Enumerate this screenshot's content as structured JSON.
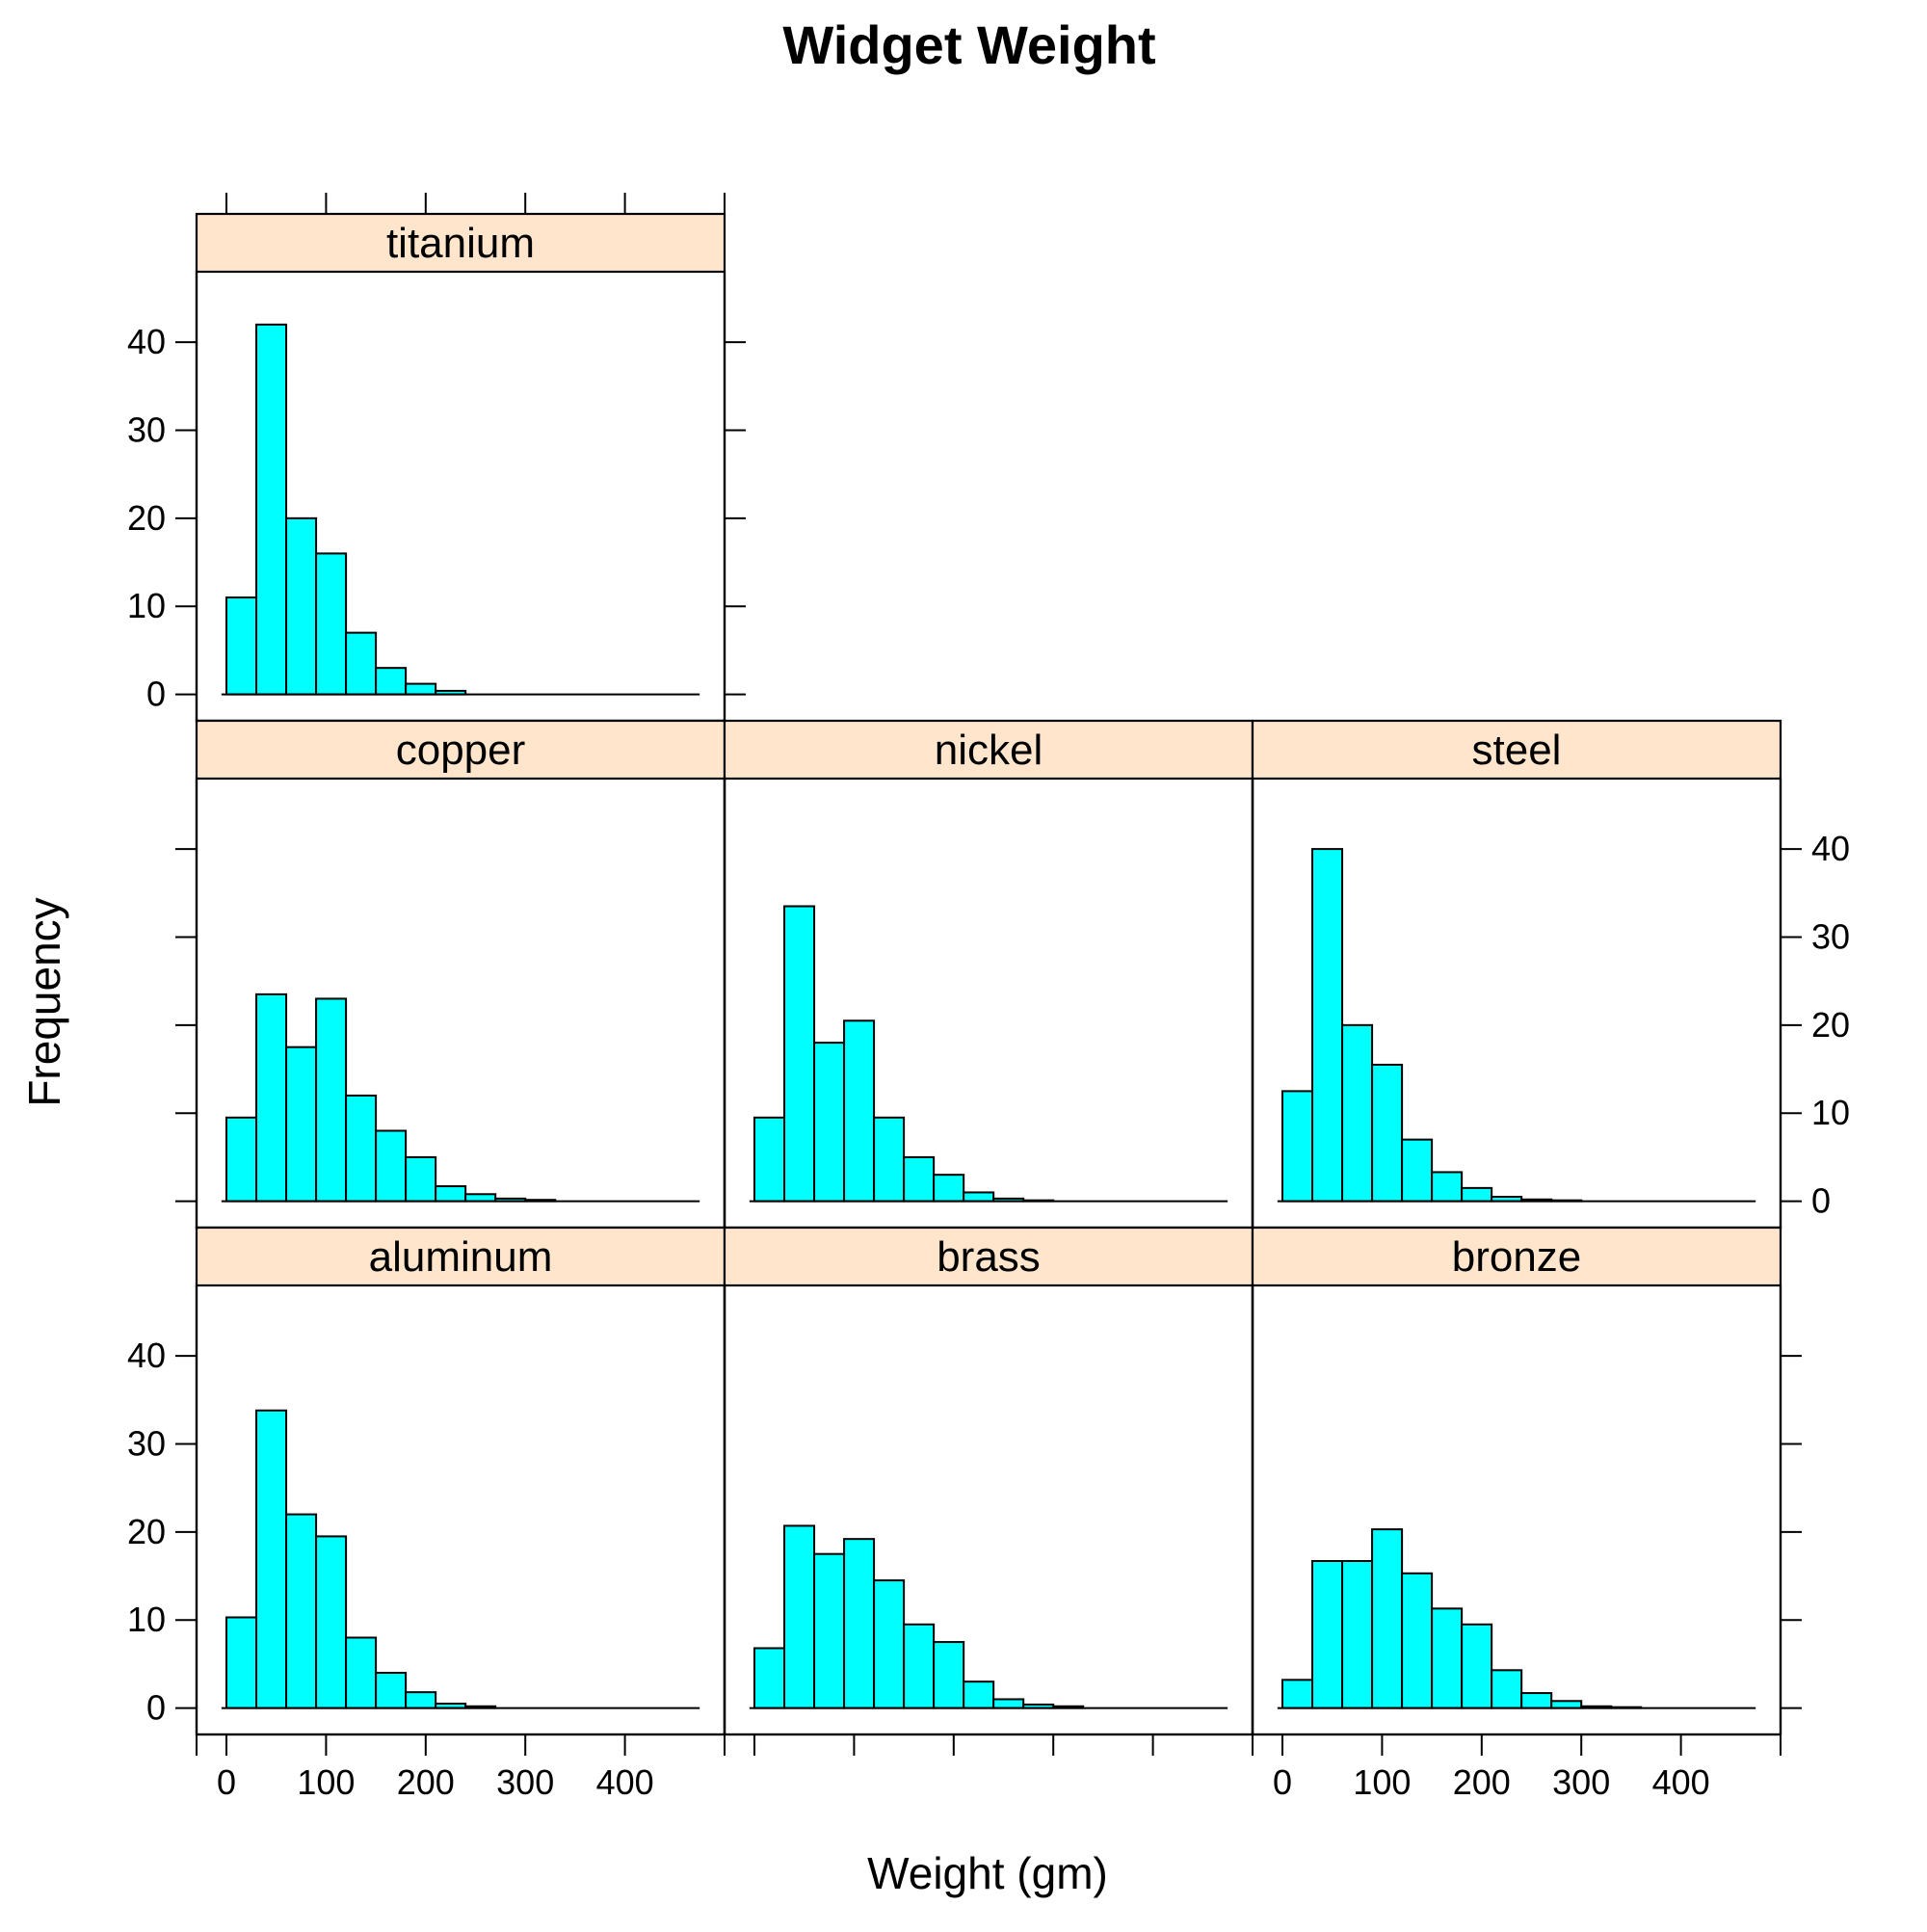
{
  "chart_data": {
    "type": "bar",
    "title": "Widget Weight",
    "xlabel": "Weight (gm)",
    "ylabel": "Frequency",
    "xlim": [
      -30,
      500
    ],
    "ylim": [
      -3,
      48
    ],
    "x_ticks": [
      0,
      100,
      200,
      300,
      400
    ],
    "y_ticks": [
      0,
      10,
      20,
      30,
      40
    ],
    "bar_color": "#00ffff",
    "strip_color": "#ffe5cc",
    "bin_width": 30,
    "bin_start": 0,
    "baseline_range": [
      -5,
      475
    ],
    "panels": [
      {
        "name": "titanium",
        "values": [
          11,
          42,
          20,
          16,
          7,
          3,
          1.2,
          0.4,
          0,
          0,
          0,
          0,
          0,
          0,
          0,
          0
        ]
      },
      {
        "name": "copper",
        "values": [
          9.5,
          23.5,
          17.5,
          23,
          12,
          8,
          5,
          1.7,
          0.8,
          0.3,
          0.15,
          0,
          0,
          0,
          0,
          0
        ]
      },
      {
        "name": "nickel",
        "values": [
          9.5,
          33.5,
          18,
          20.5,
          9.5,
          5,
          3,
          1,
          0.3,
          0.1,
          0,
          0,
          0,
          0,
          0,
          0
        ]
      },
      {
        "name": "steel",
        "values": [
          12.5,
          40,
          20,
          15.5,
          7,
          3.3,
          1.5,
          0.5,
          0.2,
          0.1,
          0,
          0,
          0,
          0,
          0,
          0
        ]
      },
      {
        "name": "aluminum",
        "values": [
          10.3,
          33.8,
          22,
          19.5,
          8,
          4,
          1.8,
          0.5,
          0.2,
          0,
          0,
          0,
          0,
          0,
          0,
          0
        ]
      },
      {
        "name": "brass",
        "values": [
          6.8,
          20.7,
          17.5,
          19.2,
          14.5,
          9.5,
          7.5,
          3,
          1,
          0.4,
          0.2,
          0,
          0,
          0,
          0,
          0
        ]
      },
      {
        "name": "bronze",
        "values": [
          3.2,
          16.7,
          16.7,
          20.3,
          15.3,
          11.3,
          9.5,
          4.3,
          1.7,
          0.8,
          0.2,
          0.1,
          0,
          0,
          0,
          0
        ]
      }
    ]
  }
}
